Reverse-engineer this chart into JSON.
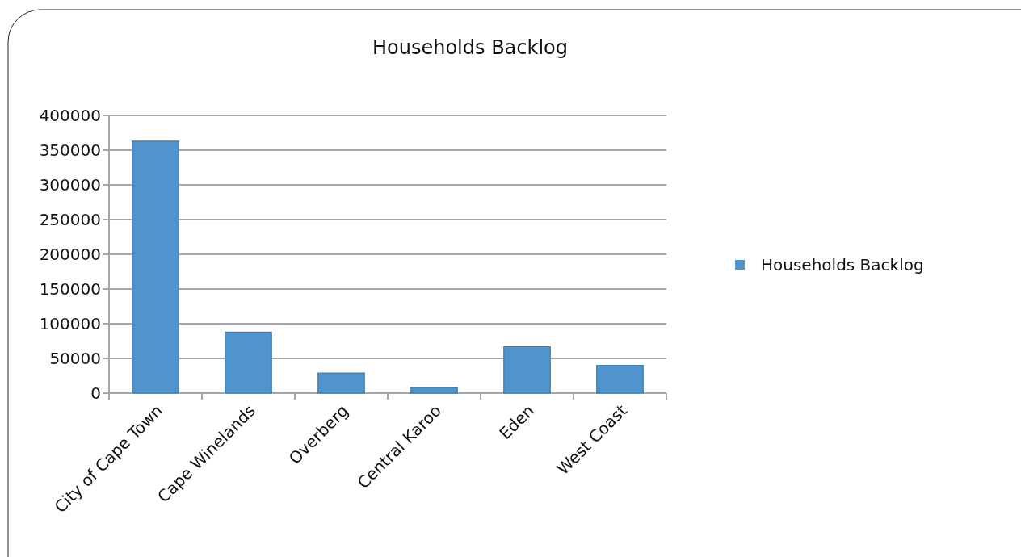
{
  "chart_data": {
    "type": "bar",
    "title": "Households Backlog",
    "categories": [
      "City of Cape Town",
      "Cape Winelands",
      "Overberg",
      "Central Karoo",
      "Eden",
      "West Coast"
    ],
    "series": [
      {
        "name": "Households Backlog",
        "color": "#4f94cd",
        "values": [
          363000,
          88000,
          29000,
          8000,
          67000,
          40000
        ]
      }
    ],
    "ylim": [
      0,
      400000
    ],
    "yticks": [
      0,
      50000,
      100000,
      150000,
      200000,
      250000,
      300000,
      350000,
      400000
    ],
    "grid": "y",
    "legend": "right"
  }
}
